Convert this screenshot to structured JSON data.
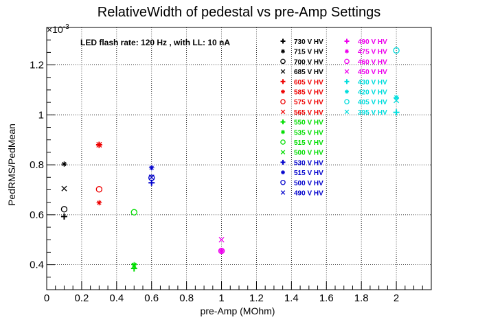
{
  "chart_data": {
    "type": "scatter",
    "title": "RelativeWidth of pedestal vs pre-Amp Settings",
    "xlabel": "pre-Amp (MOhm)",
    "ylabel": "PedRMS/PedMean",
    "y_multiplier": "×10",
    "y_exponent": "-3",
    "annotation": "LED flash rate: 120 Hz , with LL: 10 nA",
    "xlim": [
      0,
      2.2
    ],
    "ylim": [
      0.3,
      1.35
    ],
    "x_ticks": [
      "0",
      "0.2",
      "0.4",
      "0.6",
      "0.8",
      "1",
      "1.2",
      "1.4",
      "1.6",
      "1.8",
      "2"
    ],
    "y_ticks": [
      "0.4",
      "0.6",
      "0.8",
      "1",
      "1.2"
    ],
    "grid": true,
    "legend_position": "top-right",
    "colors": {
      "black": "#000000",
      "red": "#ee0000",
      "green": "#00dd00",
      "blue": "#0000cc",
      "magenta": "#ee00ee",
      "cyan": "#00dddd"
    },
    "series": [
      {
        "name": "730 V HV",
        "color": "black",
        "marker": "plus",
        "x": 0.1,
        "y": 0.593
      },
      {
        "name": "715 V HV",
        "color": "black",
        "marker": "star",
        "x": 0.1,
        "y": 0.803
      },
      {
        "name": "700 V HV",
        "color": "black",
        "marker": "circle",
        "x": 0.1,
        "y": 0.622
      },
      {
        "name": "685 V HV",
        "color": "black",
        "marker": "cross",
        "x": 0.1,
        "y": 0.705
      },
      {
        "name": "605 V HV",
        "color": "red",
        "marker": "plus",
        "x": 0.3,
        "y": 0.88
      },
      {
        "name": "585 V HV",
        "color": "red",
        "marker": "star",
        "x": 0.3,
        "y": 0.648
      },
      {
        "name": "575 V HV",
        "color": "red",
        "marker": "circle",
        "x": 0.3,
        "y": 0.702
      },
      {
        "name": "565 V HV",
        "color": "red",
        "marker": "cross",
        "x": 0.3,
        "y": 0.88
      },
      {
        "name": "550 V HV",
        "color": "green",
        "marker": "plus",
        "x": 0.5,
        "y": 0.385
      },
      {
        "name": "535 V HV",
        "color": "green",
        "marker": "star",
        "x": 0.5,
        "y": 0.4
      },
      {
        "name": "515 V HV",
        "color": "green",
        "marker": "circle",
        "x": 0.5,
        "y": 0.61
      },
      {
        "name": "500 V HV",
        "color": "green",
        "marker": "cross",
        "x": 0.5,
        "y": 0.395
      },
      {
        "name": "530 V HV",
        "color": "blue",
        "marker": "plus",
        "x": 0.6,
        "y": 0.728
      },
      {
        "name": "515 V HV",
        "color": "blue",
        "marker": "star",
        "x": 0.6,
        "y": 0.788
      },
      {
        "name": "500 V HV",
        "color": "blue",
        "marker": "circle",
        "x": 0.6,
        "y": 0.748
      },
      {
        "name": "490 V HV",
        "color": "blue",
        "marker": "cross",
        "x": 0.6,
        "y": 0.75
      },
      {
        "name": "490 V HV",
        "color": "magenta",
        "marker": "plus",
        "x": 1.0,
        "y": 0.455
      },
      {
        "name": "475 V HV",
        "color": "magenta",
        "marker": "star",
        "x": 1.0,
        "y": 0.455
      },
      {
        "name": "460 V HV",
        "color": "magenta",
        "marker": "circle",
        "x": 1.0,
        "y": 0.455
      },
      {
        "name": "450 V HV",
        "color": "magenta",
        "marker": "cross",
        "x": 1.0,
        "y": 0.5
      },
      {
        "name": "430 V HV",
        "color": "cyan",
        "marker": "plus",
        "x": 2.0,
        "y": 1.01
      },
      {
        "name": "420 V HV",
        "color": "cyan",
        "marker": "star",
        "x": 2.0,
        "y": 1.07
      },
      {
        "name": "405 V HV",
        "color": "cyan",
        "marker": "circle",
        "x": 2.0,
        "y": 1.258
      },
      {
        "name": "395 V HV",
        "color": "cyan",
        "marker": "cross",
        "x": 2.0,
        "y": 1.058
      }
    ]
  }
}
